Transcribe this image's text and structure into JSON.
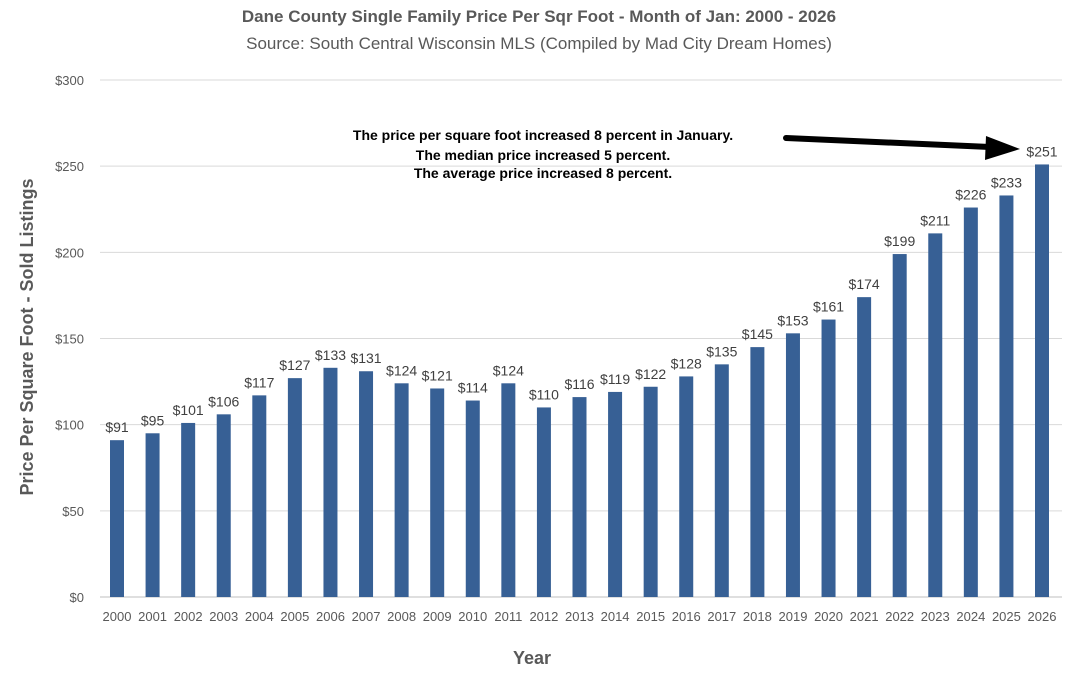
{
  "chart_data": {
    "type": "bar",
    "title": "Dane County Single Family Price Per Sqr Foot - Month of Jan: 2000 - 2026",
    "subtitle": "Source: South Central Wisconsin MLS (Compiled by Mad City Dream Homes)",
    "xlabel": "Year",
    "ylabel": "Price Per Square Foot - Sold Listings",
    "ylim": [
      0,
      300
    ],
    "yticks": [
      0,
      50,
      100,
      150,
      200,
      250,
      300
    ],
    "ytick_labels": [
      "$0",
      "$50",
      "$100",
      "$150",
      "$200",
      "$250",
      "$300"
    ],
    "grid": true,
    "categories": [
      "2000",
      "2001",
      "2002",
      "2003",
      "2004",
      "2005",
      "2006",
      "2007",
      "2008",
      "2009",
      "2010",
      "2011",
      "2012",
      "2013",
      "2014",
      "2015",
      "2016",
      "2017",
      "2018",
      "2019",
      "2020",
      "2021",
      "2022",
      "2023",
      "2024",
      "2025",
      "2026"
    ],
    "values": [
      91,
      95,
      101,
      106,
      117,
      127,
      133,
      131,
      124,
      121,
      114,
      124,
      110,
      116,
      119,
      122,
      128,
      135,
      145,
      153,
      161,
      174,
      199,
      211,
      226,
      233,
      251
    ],
    "data_labels": [
      "$91",
      "$95",
      "$101",
      "$106",
      "$117",
      "$127",
      "$133",
      "$131",
      "$124",
      "$121",
      "$114",
      "$124",
      "$110",
      "$116",
      "$119",
      "$122",
      "$128",
      "$135",
      "$145",
      "$153",
      "$161",
      "$174",
      "$199",
      "$211",
      "$226",
      "$233",
      "$251"
    ],
    "bar_color": "#376095",
    "annotation": [
      "The price per square foot increased 8 percent in January.",
      "The median price increased 5 percent.",
      "The average price increased 8 percent."
    ]
  }
}
